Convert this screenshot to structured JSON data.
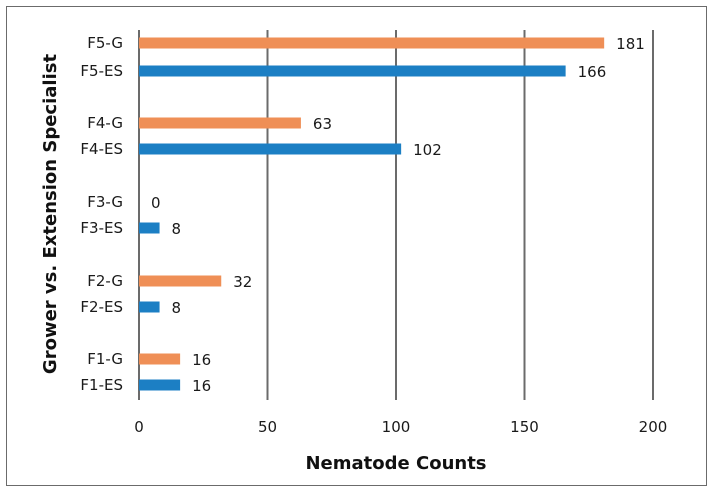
{
  "chart_data": {
    "type": "bar",
    "orientation": "horizontal",
    "xlabel": "Nematode Counts",
    "ylabel": "Grower vs. Extension Specialist",
    "xlim": [
      0,
      200
    ],
    "xticks": [
      "0",
      "50",
      "100",
      "150",
      "200"
    ],
    "grid": "vertical",
    "categories": [
      "F5-G",
      "F5-ES",
      "F4-G",
      "F4-ES",
      "F3-G",
      "F3-ES",
      "F2-G",
      "F2-ES",
      "F1-G",
      "F1-ES"
    ],
    "values": [
      181,
      166,
      63,
      102,
      0,
      8,
      32,
      8,
      16,
      16
    ],
    "colors": {
      "grower": "#ef8f56",
      "extension_specialist": "#1c7fc4",
      "grid": "#6b6b6b"
    }
  }
}
